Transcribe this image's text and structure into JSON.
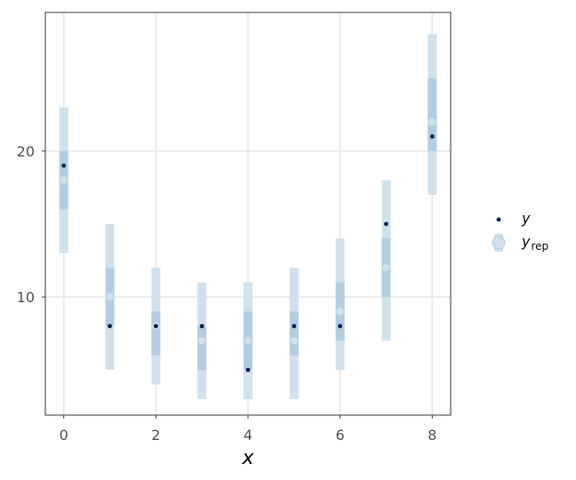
{
  "chart_data": {
    "type": "interval",
    "x": [
      0,
      1,
      2,
      3,
      4,
      5,
      6,
      7,
      8
    ],
    "series": [
      {
        "name": "y",
        "values": [
          19,
          8,
          8,
          8,
          5,
          8,
          8,
          15,
          21
        ]
      },
      {
        "name": "y_rep",
        "median": [
          18,
          10,
          8,
          7,
          7,
          7,
          9,
          12,
          22
        ],
        "inner_interval": [
          [
            16,
            20
          ],
          [
            8,
            12
          ],
          [
            6,
            9
          ],
          [
            5,
            8
          ],
          [
            5,
            9
          ],
          [
            6,
            9
          ],
          [
            7,
            11
          ],
          [
            10,
            14
          ],
          [
            20,
            25
          ]
        ],
        "outer_interval": [
          [
            13,
            23
          ],
          [
            5,
            15
          ],
          [
            4,
            12
          ],
          [
            3,
            11
          ],
          [
            3,
            11
          ],
          [
            3,
            12
          ],
          [
            5,
            14
          ],
          [
            7,
            18
          ],
          [
            17,
            28
          ]
        ]
      }
    ],
    "xlabel": "x",
    "ylabel": "",
    "xticks": [
      "0",
      "2",
      "4",
      "6",
      "8"
    ],
    "yticks": [
      "10",
      "20"
    ],
    "xlim": [
      -0.4,
      8.4
    ],
    "ylim": [
      1.9,
      29.5
    ],
    "grid": true,
    "legend": {
      "position": "right",
      "entries": [
        {
          "label": "y",
          "color": "#011f4b"
        },
        {
          "label": "y",
          "subscript": "rep",
          "color": "#b3cde0"
        }
      ]
    },
    "colors": {
      "y": "#011f4b",
      "outer": "#d1e1ec",
      "inner": "#b3cde0",
      "median": "#d1e1ec",
      "grid": "#ebebeb",
      "border": "#333333"
    }
  }
}
